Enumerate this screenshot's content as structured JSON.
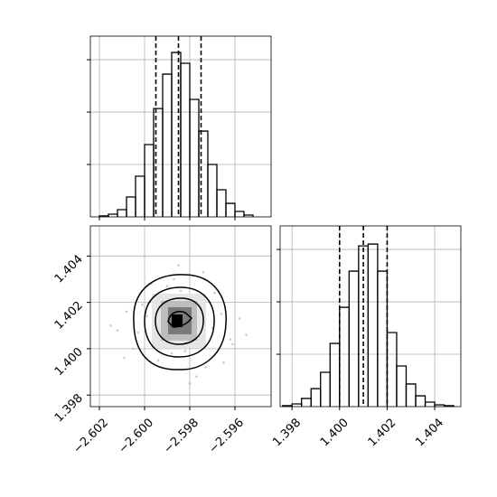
{
  "chart_data": [
    {
      "type": "histogram",
      "bins": [
        -2.602,
        -2.6016,
        -2.6012,
        -2.6008,
        -2.6004,
        -2.6,
        -2.5996,
        -2.5992,
        -2.5988,
        -2.5984,
        -2.598,
        -2.5976,
        -2.5972,
        -2.5968,
        -2.5964,
        -2.596,
        -2.5956,
        -2.5952
      ],
      "counts": [
        10,
        26,
        69,
        190,
        388,
        690,
        1034,
        1362,
        1569,
        1466,
        1121,
        819,
        500,
        259,
        129,
        52,
        17
      ],
      "quantiles": [
        -2.5995,
        -2.5985,
        -2.5975
      ],
      "xlim": [
        -2.6024,
        -2.5944
      ],
      "xticks": [
        -2.602,
        -2.6,
        -2.598,
        -2.596
      ],
      "ylim": [
        0,
        1725
      ],
      "yticks": [
        500,
        1000,
        1500
      ],
      "grid": true,
      "color": "#000000"
    },
    {
      "type": "scatter",
      "x": [
        -2.5978,
        -2.5992,
        -2.5981,
        -2.597,
        -2.5999,
        -2.5988,
        -2.5975,
        -2.6003,
        -2.5966,
        -2.5984,
        -2.5994,
        -2.5979,
        -2.6008,
        -2.5962,
        -2.5987,
        -2.5973,
        -2.5996,
        -2.5983,
        -2.6012,
        -2.5958,
        -2.599,
        -2.5977,
        -2.5986,
        -2.6001,
        -2.5969,
        -2.5982,
        -2.5993,
        -2.5974,
        -2.6005,
        -2.5965,
        -2.5989,
        -2.598,
        -2.6015,
        -2.5955,
        -2.5997,
        -2.5971,
        -2.5985,
        -2.6009,
        -2.5961,
        -2.5991
      ],
      "y": [
        1.4012,
        1.4005,
        1.4018,
        1.4009,
        1.4014,
        1.3998,
        1.4021,
        1.4007,
        1.4015,
        1.4025,
        1.3995,
        1.4003,
        1.4016,
        1.4004,
        1.403,
        1.3992,
        1.4022,
        1.401,
        1.4008,
        1.4013,
        1.4027,
        1.3988,
        1.4001,
        1.4019,
        1.4024,
        1.3999,
        1.4011,
        1.4033,
        1.4,
        1.3994,
        1.4017,
        1.3985,
        1.401,
        1.4006,
        1.4028,
        1.402,
        1.4036,
        1.3996,
        1.4002,
        1.4023
      ],
      "xlim": [
        -2.6024,
        -2.5944
      ],
      "xticks": [
        {
          "value": -2.602,
          "label": "−2.602"
        },
        {
          "value": -2.6,
          "label": "−2.600"
        },
        {
          "value": -2.598,
          "label": "−2.598"
        },
        {
          "value": -2.596,
          "label": "−2.596"
        }
      ],
      "ylim": [
        1.3975,
        1.4053
      ],
      "yticks": [
        {
          "value": 1.398,
          "label": "1.398"
        },
        {
          "value": 1.4,
          "label": "1.400"
        },
        {
          "value": 1.402,
          "label": "1.402"
        },
        {
          "value": 1.404,
          "label": "1.404"
        }
      ],
      "grid": true,
      "color": "#aaaaaa"
    },
    {
      "type": "histogram",
      "bins": [
        1.3976,
        1.398,
        1.3984,
        1.3988,
        1.3992,
        1.3996,
        1.4,
        1.4004,
        1.4008,
        1.4012,
        1.4016,
        1.402,
        1.4024,
        1.4028,
        1.4032,
        1.4036,
        1.404,
        1.4044,
        1.4048
      ],
      "counts": [
        9,
        26,
        78,
        172,
        328,
        603,
        948,
        1293,
        1534,
        1552,
        1293,
        707,
        388,
        216,
        103,
        43,
        17,
        9
      ],
      "quantiles": [
        1.4,
        1.401,
        1.402
      ],
      "xlim": [
        1.3975,
        1.4051
      ],
      "xticks": [
        {
          "value": 1.398,
          "label": "1.398"
        },
        {
          "value": 1.4,
          "label": "1.400"
        },
        {
          "value": 1.402,
          "label": "1.402"
        },
        {
          "value": 1.404,
          "label": "1.404"
        }
      ],
      "ylim": [
        0,
        1725
      ],
      "yticks": [
        500,
        1000,
        1500
      ],
      "grid": true,
      "color": "#000000"
    }
  ]
}
